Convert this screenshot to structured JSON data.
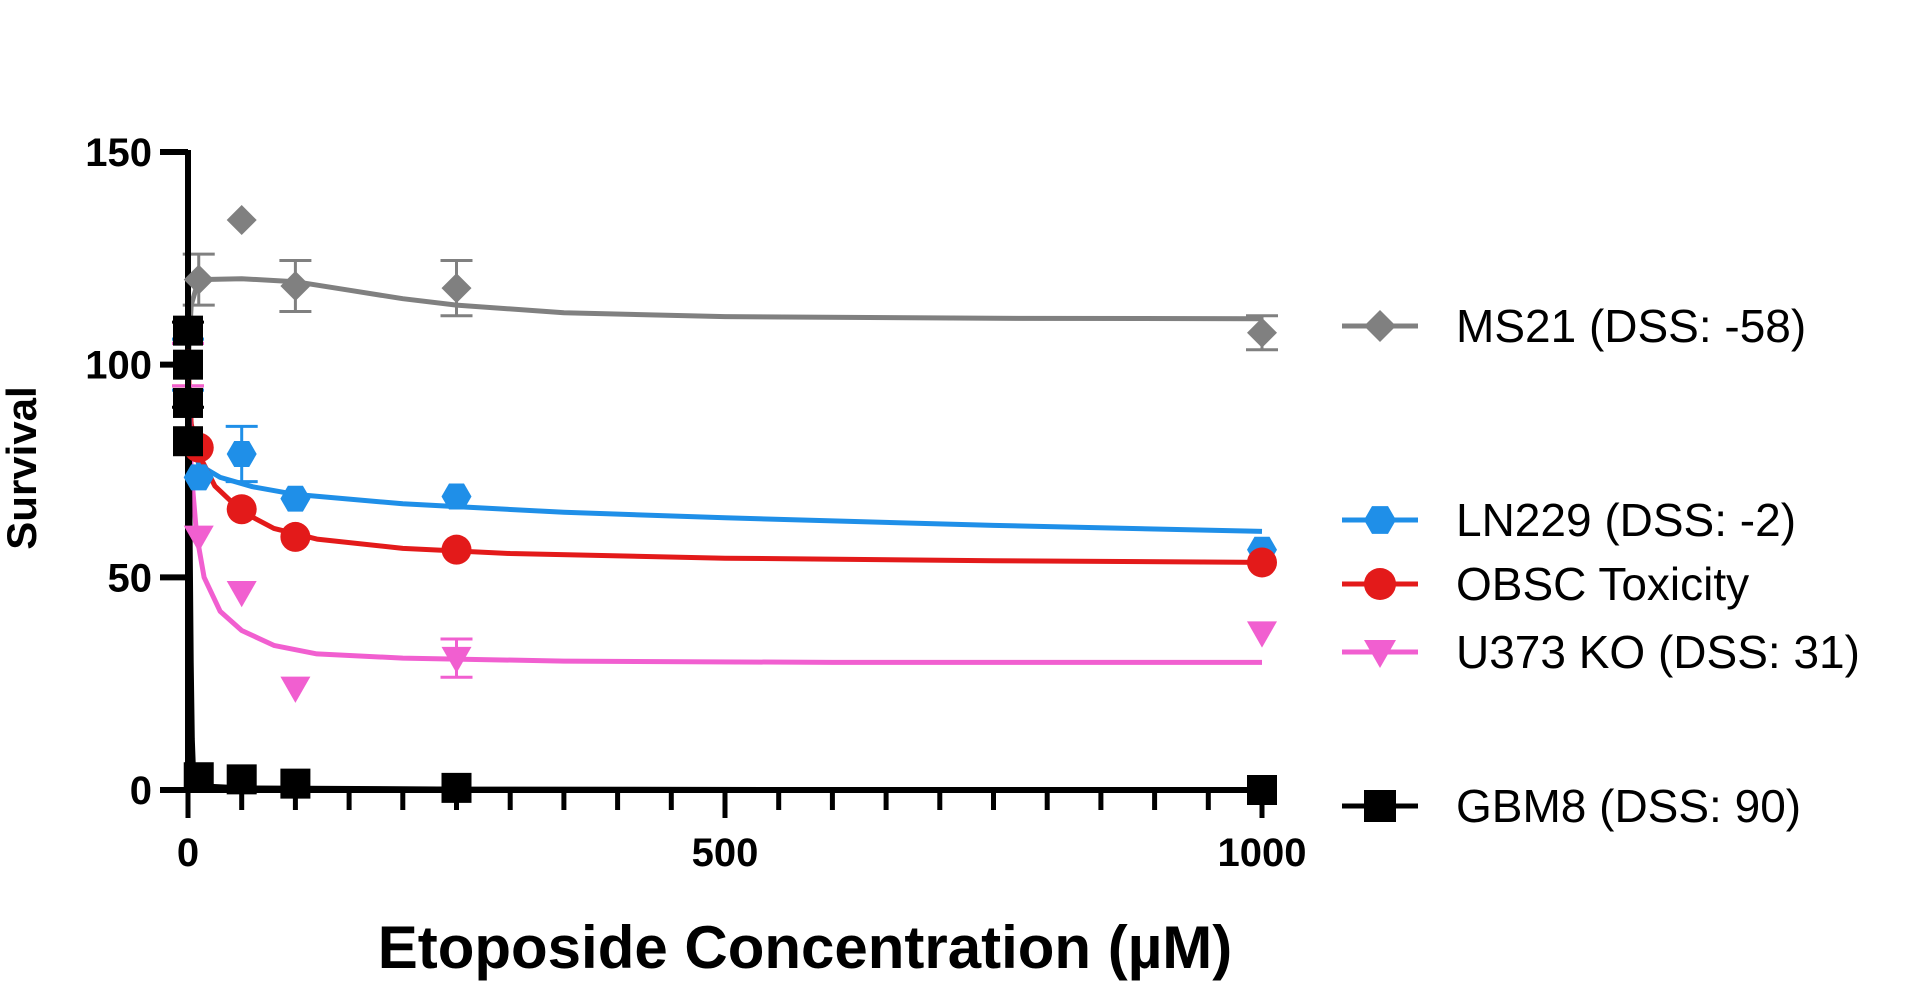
{
  "chart_data": {
    "type": "scatter",
    "title": "",
    "xlabel": "Etoposide Concentration (µM)",
    "ylabel": "Survival",
    "xlim": [
      0,
      1000
    ],
    "ylim": [
      0,
      150
    ],
    "x_major_ticks": [
      0,
      500,
      1000
    ],
    "x_tick_labels": [
      "0",
      "500",
      "1000"
    ],
    "x_minor_tick_step": 50,
    "y_ticks": [
      0,
      50,
      100,
      150
    ],
    "y_tick_labels": [
      "0",
      "50",
      "100",
      "150"
    ],
    "grid": false,
    "legend_position": "right",
    "series": [
      {
        "name": "MS21 (DSS: -58)",
        "color": "#808080",
        "marker": "diamond",
        "points": [
          {
            "x": 0,
            "y": 100,
            "err": 6
          },
          {
            "x": 10,
            "y": 120,
            "err": 6
          },
          {
            "x": 50,
            "y": 134,
            "err": 0
          },
          {
            "x": 100,
            "y": 118.5,
            "err": 6
          },
          {
            "x": 250,
            "y": 118,
            "err": 6.5
          },
          {
            "x": 1000,
            "y": 107.5,
            "err": 4
          }
        ],
        "fit": [
          [
            0,
            100
          ],
          [
            3,
            114
          ],
          [
            10,
            120
          ],
          [
            50,
            120.2
          ],
          [
            100,
            119.5
          ],
          [
            150,
            117.5
          ],
          [
            200,
            115.5
          ],
          [
            250,
            114
          ],
          [
            350,
            112.2
          ],
          [
            500,
            111.3
          ],
          [
            750,
            110.9
          ],
          [
            1000,
            110.8
          ]
        ]
      },
      {
        "name": "LN229 (DSS: -2)",
        "color": "#1f8fe8",
        "marker": "hexagon",
        "points": [
          {
            "x": 0,
            "y": 100,
            "err": 6
          },
          {
            "x": 10,
            "y": 73.5,
            "err": 0
          },
          {
            "x": 50,
            "y": 79,
            "err": 6.5
          },
          {
            "x": 100,
            "y": 68.5,
            "err": 0
          },
          {
            "x": 250,
            "y": 69,
            "err": 0
          },
          {
            "x": 1000,
            "y": 56.5,
            "err": 0
          }
        ],
        "fit": [
          [
            0,
            100
          ],
          [
            3,
            86
          ],
          [
            10,
            76.5
          ],
          [
            30,
            73.5
          ],
          [
            60,
            71.3
          ],
          [
            100,
            69.5
          ],
          [
            200,
            67.3
          ],
          [
            350,
            65.3
          ],
          [
            500,
            64
          ],
          [
            750,
            62.2
          ],
          [
            1000,
            60.8
          ]
        ]
      },
      {
        "name": "OBSC Toxicity",
        "color": "#e31a1a",
        "marker": "circle",
        "points": [
          {
            "x": 0,
            "y": 100,
            "err": 5
          },
          {
            "x": 10,
            "y": 80.5,
            "err": 0
          },
          {
            "x": 50,
            "y": 66,
            "err": 0
          },
          {
            "x": 100,
            "y": 59.5,
            "err": 0
          },
          {
            "x": 250,
            "y": 56.5,
            "err": 0
          },
          {
            "x": 1000,
            "y": 53.5,
            "err": 0
          }
        ],
        "fit": [
          [
            0,
            100
          ],
          [
            3,
            86
          ],
          [
            10,
            79
          ],
          [
            25,
            71.5
          ],
          [
            50,
            65.5
          ],
          [
            80,
            61.5
          ],
          [
            120,
            59
          ],
          [
            200,
            56.8
          ],
          [
            300,
            55.6
          ],
          [
            500,
            54.5
          ],
          [
            750,
            53.9
          ],
          [
            1000,
            53.5
          ]
        ]
      },
      {
        "name": "U373 KO (DSS: 31)",
        "color": "#f15fd0",
        "marker": "triangle-down",
        "points": [
          {
            "x": 0,
            "y": 100,
            "err": 5
          },
          {
            "x": 10,
            "y": 59.5,
            "err": 0
          },
          {
            "x": 50,
            "y": 46.5,
            "err": 0
          },
          {
            "x": 100,
            "y": 24,
            "err": 0
          },
          {
            "x": 250,
            "y": 31,
            "err": 4.5
          },
          {
            "x": 1000,
            "y": 37,
            "err": 0
          }
        ],
        "fit": [
          [
            0,
            100
          ],
          [
            3,
            75
          ],
          [
            8,
            60
          ],
          [
            15,
            50
          ],
          [
            30,
            42
          ],
          [
            50,
            37.5
          ],
          [
            80,
            34
          ],
          [
            120,
            32
          ],
          [
            200,
            31
          ],
          [
            350,
            30.3
          ],
          [
            600,
            30
          ],
          [
            1000,
            30
          ]
        ]
      },
      {
        "name": "GBM8 (DSS: 90)",
        "color": "#000000",
        "marker": "square",
        "points": [
          {
            "x": 0,
            "y": 108,
            "err": 0
          },
          {
            "x": 0,
            "y": 100,
            "err": 10
          },
          {
            "x": 0,
            "y": 91,
            "err": 0
          },
          {
            "x": 0,
            "y": 82,
            "err": 0
          },
          {
            "x": 10,
            "y": 3,
            "err": 0
          },
          {
            "x": 50,
            "y": 2.5,
            "err": 0
          },
          {
            "x": 100,
            "y": 1.5,
            "err": 0
          },
          {
            "x": 250,
            "y": 0.5,
            "err": 0
          },
          {
            "x": 1000,
            "y": 0,
            "err": 0
          }
        ],
        "fit": [
          [
            0,
            100
          ],
          [
            1,
            90
          ],
          [
            2,
            60
          ],
          [
            3,
            30
          ],
          [
            4,
            12
          ],
          [
            5,
            5
          ],
          [
            7,
            2
          ],
          [
            10,
            1
          ],
          [
            50,
            0.5
          ],
          [
            250,
            0.2
          ],
          [
            1000,
            0
          ]
        ]
      }
    ]
  }
}
